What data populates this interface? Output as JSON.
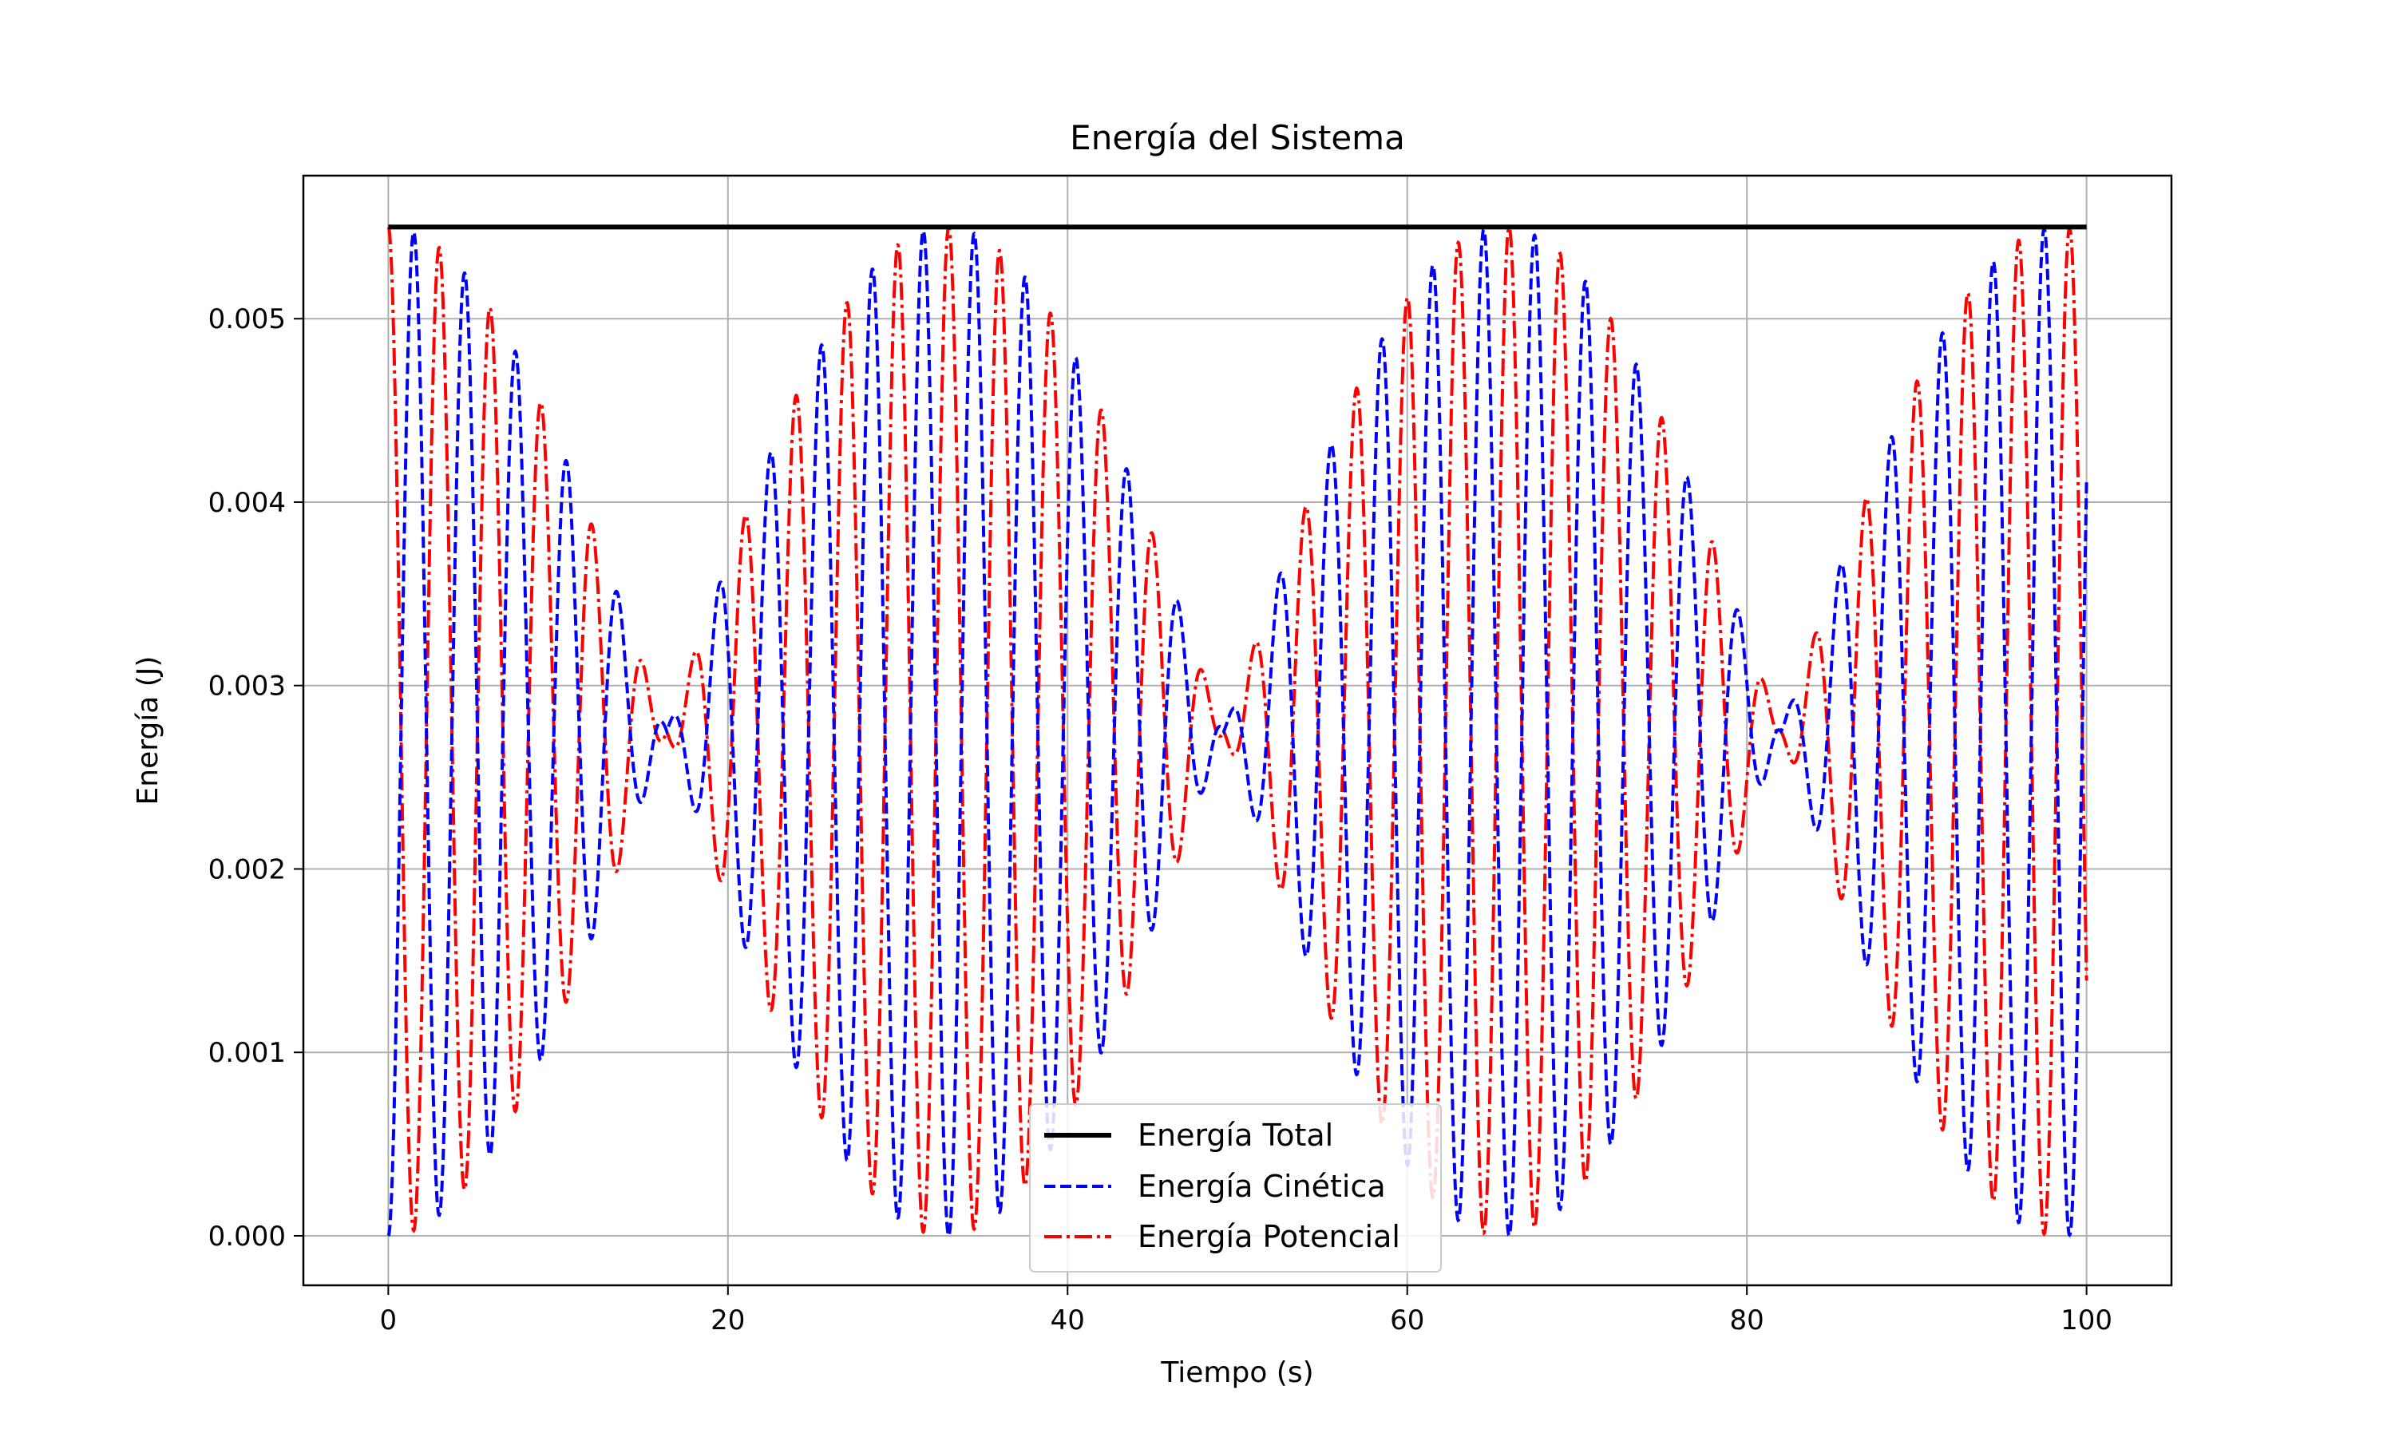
{
  "chart_data": {
    "type": "line",
    "title": "Energía del Sistema",
    "xlabel": "Tiempo (s)",
    "ylabel": "Energía (J)",
    "xlim": [
      -5,
      105
    ],
    "ylim": [
      -0.00027,
      0.00578
    ],
    "xticks": [
      0,
      20,
      40,
      60,
      80,
      100
    ],
    "xtick_labels": [
      "0",
      "20",
      "40",
      "60",
      "80",
      "100"
    ],
    "yticks": [
      0.0,
      0.001,
      0.002,
      0.003,
      0.004,
      0.005
    ],
    "ytick_labels": [
      "0.000",
      "0.001",
      "0.002",
      "0.003",
      "0.004",
      "0.005"
    ],
    "grid": true,
    "legend_position": "bottom-center",
    "x_range": [
      0,
      100
    ],
    "total_energy": 0.0055,
    "carrier_period": 3.0,
    "beat_period": 32.8,
    "series": [
      {
        "name": "Energía Total",
        "color": "#000000",
        "style": "solid"
      },
      {
        "name": "Energía Cinética",
        "color": "#0000ff",
        "style": "dashed"
      },
      {
        "name": "Energía Potencial",
        "color": "#ff0000",
        "style": "dashdot"
      }
    ]
  }
}
